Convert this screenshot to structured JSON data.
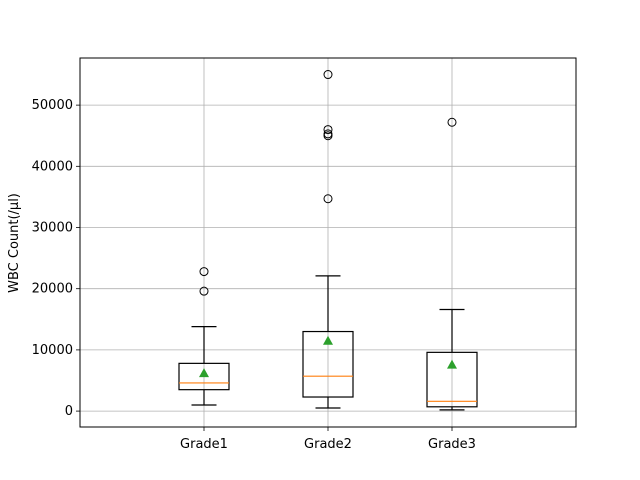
{
  "chart_data": {
    "type": "box",
    "ylabel": "WBC Count(/µl)",
    "xlabel": "",
    "title": "",
    "ylim": [
      -2600,
      57700
    ],
    "yticks": [
      0,
      10000,
      20000,
      30000,
      40000,
      50000
    ],
    "grid": true,
    "categories": [
      "Grade1",
      "Grade2",
      "Grade3"
    ],
    "boxes": [
      {
        "whisker_low": 1000,
        "q1": 3500,
        "median": 4600,
        "q3": 7800,
        "whisker_high": 13800,
        "mean": 6200,
        "outliers": [
          19600,
          22800
        ]
      },
      {
        "whisker_low": 500,
        "q1": 2300,
        "median": 5700,
        "q3": 13000,
        "whisker_high": 22100,
        "mean": 11500,
        "outliers": [
          34700,
          45000,
          45300,
          46000,
          55000
        ]
      },
      {
        "whisker_low": 200,
        "q1": 700,
        "median": 1600,
        "q3": 9600,
        "whisker_high": 16600,
        "mean": 7600,
        "outliers": [
          47200
        ]
      }
    ],
    "colors": {
      "box": "#000000",
      "median": "#ff7f0e",
      "mean": "#2ca02c",
      "grid": "#b0b0b0"
    }
  }
}
